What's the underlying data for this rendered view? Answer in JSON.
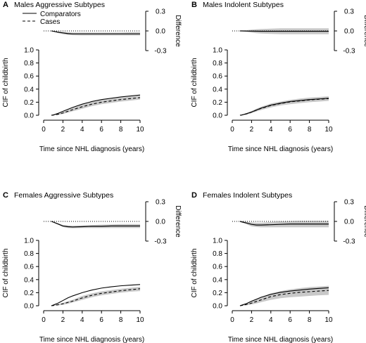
{
  "figure": {
    "legend": {
      "placement": "top-left of panel A",
      "entries": [
        {
          "label": "Comparators",
          "style": "solid"
        },
        {
          "label": "Cases",
          "style": "dashed"
        }
      ]
    },
    "colors": {
      "line": "#000000",
      "band": "#c8c8c8",
      "reference": "#000000"
    }
  },
  "chart_data": [
    {
      "type": "line",
      "panel_label": "A",
      "title": "Males Aggressive Subtypes",
      "xlabel": "Time since NHL diagnosis (years)",
      "ylabel": "CIF of childbirth",
      "diff_label": "Difference",
      "xlim": [
        0,
        10
      ],
      "ylim": [
        0,
        1.0
      ],
      "diff_ylim": [
        -0.3,
        0.3
      ],
      "x_ticks": [
        "0",
        "2",
        "4",
        "6",
        "8",
        "10"
      ],
      "y_ticks": [
        "0.0",
        "0.2",
        "0.4",
        "0.6",
        "0.8",
        "1.0"
      ],
      "diff_ticks": [
        "0.3",
        "0.0",
        "-0.3"
      ],
      "x": [
        0.8,
        1,
        1.5,
        2,
        2.5,
        3,
        4,
        5,
        6,
        7,
        8,
        9,
        10
      ],
      "series": [
        {
          "name": "Comparators",
          "values": [
            0.0,
            0.005,
            0.03,
            0.06,
            0.09,
            0.12,
            0.17,
            0.21,
            0.24,
            0.26,
            0.28,
            0.295,
            0.31
          ]
        },
        {
          "name": "Cases",
          "values": [
            0.0,
            0.003,
            0.015,
            0.035,
            0.06,
            0.085,
            0.13,
            0.17,
            0.2,
            0.22,
            0.24,
            0.255,
            0.27
          ]
        }
      ],
      "cases_band": {
        "lower": [
          0.0,
          0.0,
          0.005,
          0.02,
          0.04,
          0.06,
          0.1,
          0.14,
          0.17,
          0.19,
          0.21,
          0.225,
          0.24
        ],
        "upper": [
          0.0,
          0.008,
          0.025,
          0.05,
          0.08,
          0.11,
          0.16,
          0.2,
          0.23,
          0.25,
          0.27,
          0.285,
          0.3
        ]
      },
      "difference": {
        "values": [
          0.0,
          -0.005,
          -0.02,
          -0.03,
          -0.04,
          -0.045,
          -0.045,
          -0.045,
          -0.045,
          -0.045,
          -0.045,
          -0.045,
          -0.045
        ],
        "lower": [
          0.0,
          -0.01,
          -0.03,
          -0.05,
          -0.06,
          -0.065,
          -0.07,
          -0.07,
          -0.07,
          -0.07,
          -0.07,
          -0.07,
          -0.07
        ],
        "upper": [
          0.0,
          0.0,
          -0.01,
          -0.015,
          -0.02,
          -0.025,
          -0.025,
          -0.025,
          -0.025,
          -0.025,
          -0.025,
          -0.02,
          -0.02
        ]
      }
    },
    {
      "type": "line",
      "panel_label": "B",
      "title": "Males Indolent Subtypes",
      "xlabel": "Time since NHL diagnosis (years)",
      "ylabel": "CIF of childbirth",
      "diff_label": "Difference",
      "xlim": [
        0,
        10
      ],
      "ylim": [
        0,
        1.0
      ],
      "diff_ylim": [
        -0.3,
        0.3
      ],
      "x_ticks": [
        "0",
        "2",
        "4",
        "6",
        "8",
        "10"
      ],
      "y_ticks": [
        "0.0",
        "0.2",
        "0.4",
        "0.6",
        "0.8",
        "1.0"
      ],
      "diff_ticks": [
        "0.3",
        "0.0",
        "-0.3"
      ],
      "x": [
        0.8,
        1,
        1.5,
        2,
        2.5,
        3,
        4,
        5,
        6,
        7,
        8,
        9,
        10
      ],
      "series": [
        {
          "name": "Comparators",
          "values": [
            0.0,
            0.005,
            0.025,
            0.05,
            0.08,
            0.11,
            0.155,
            0.185,
            0.21,
            0.225,
            0.24,
            0.25,
            0.26
          ]
        },
        {
          "name": "Cases",
          "values": [
            0.0,
            0.004,
            0.022,
            0.048,
            0.078,
            0.105,
            0.15,
            0.18,
            0.205,
            0.22,
            0.235,
            0.245,
            0.255
          ]
        }
      ],
      "cases_band": {
        "lower": [
          0.0,
          0.0,
          0.012,
          0.032,
          0.058,
          0.08,
          0.12,
          0.15,
          0.17,
          0.185,
          0.2,
          0.21,
          0.22
        ],
        "upper": [
          0.0,
          0.01,
          0.035,
          0.065,
          0.1,
          0.13,
          0.18,
          0.21,
          0.235,
          0.255,
          0.27,
          0.28,
          0.29
        ]
      },
      "difference": {
        "values": [
          0.0,
          0.0,
          -0.002,
          -0.003,
          -0.004,
          -0.005,
          -0.005,
          -0.005,
          -0.005,
          -0.005,
          -0.005,
          -0.005,
          -0.005
        ],
        "lower": [
          0.0,
          -0.005,
          -0.015,
          -0.025,
          -0.035,
          -0.04,
          -0.045,
          -0.05,
          -0.05,
          -0.05,
          -0.05,
          -0.05,
          -0.05
        ],
        "upper": [
          0.0,
          0.005,
          0.012,
          0.02,
          0.025,
          0.03,
          0.035,
          0.04,
          0.04,
          0.04,
          0.04,
          0.04,
          0.04
        ]
      }
    },
    {
      "type": "line",
      "panel_label": "C",
      "title": "Females Aggressive Subtypes",
      "xlabel": "Time since NHL diagnosis (years)",
      "ylabel": "CIF of childbirth",
      "diff_label": "Difference",
      "xlim": [
        0,
        10
      ],
      "ylim": [
        0,
        1.0
      ],
      "diff_ylim": [
        -0.3,
        0.3
      ],
      "x_ticks": [
        "0",
        "2",
        "4",
        "6",
        "8",
        "10"
      ],
      "y_ticks": [
        "0.0",
        "0.2",
        "0.4",
        "0.6",
        "0.8",
        "1.0"
      ],
      "diff_ticks": [
        "0.3",
        "0.0",
        "-0.3"
      ],
      "x": [
        0.8,
        1,
        1.5,
        2,
        2.5,
        3,
        4,
        5,
        6,
        7,
        8,
        9,
        10
      ],
      "series": [
        {
          "name": "Comparators",
          "values": [
            0.0,
            0.01,
            0.04,
            0.08,
            0.12,
            0.15,
            0.2,
            0.24,
            0.27,
            0.29,
            0.305,
            0.315,
            0.325
          ]
        },
        {
          "name": "Cases",
          "values": [
            0.0,
            0.003,
            0.015,
            0.03,
            0.05,
            0.07,
            0.12,
            0.16,
            0.19,
            0.21,
            0.23,
            0.245,
            0.26
          ]
        }
      ],
      "cases_band": {
        "lower": [
          0.0,
          0.0,
          0.005,
          0.015,
          0.03,
          0.05,
          0.09,
          0.13,
          0.16,
          0.18,
          0.2,
          0.215,
          0.225
        ],
        "upper": [
          0.0,
          0.008,
          0.025,
          0.045,
          0.07,
          0.09,
          0.15,
          0.19,
          0.22,
          0.24,
          0.26,
          0.275,
          0.29
        ]
      },
      "difference": {
        "values": [
          0.0,
          -0.01,
          -0.04,
          -0.07,
          -0.08,
          -0.085,
          -0.08,
          -0.075,
          -0.075,
          -0.07,
          -0.07,
          -0.07,
          -0.07
        ],
        "lower": [
          0.0,
          -0.015,
          -0.05,
          -0.085,
          -0.1,
          -0.105,
          -0.1,
          -0.1,
          -0.1,
          -0.1,
          -0.1,
          -0.1,
          -0.1
        ],
        "upper": [
          0.0,
          -0.005,
          -0.03,
          -0.055,
          -0.06,
          -0.065,
          -0.06,
          -0.055,
          -0.05,
          -0.045,
          -0.04,
          -0.04,
          -0.04
        ]
      }
    },
    {
      "type": "line",
      "panel_label": "D",
      "title": "Females Indolent Subtypes",
      "xlabel": "Time since NHL diagnosis (years)",
      "ylabel": "CIF of childbirth",
      "diff_label": "Difference",
      "xlim": [
        0,
        10
      ],
      "ylim": [
        0,
        1.0
      ],
      "diff_ylim": [
        -0.3,
        0.3
      ],
      "x_ticks": [
        "0",
        "2",
        "4",
        "6",
        "8",
        "10"
      ],
      "y_ticks": [
        "0.0",
        "0.2",
        "0.4",
        "0.6",
        "0.8",
        "1.0"
      ],
      "diff_ticks": [
        "0.3",
        "0.0",
        "-0.3"
      ],
      "x": [
        0.8,
        1,
        1.5,
        2,
        2.5,
        3,
        4,
        5,
        6,
        7,
        8,
        9,
        10
      ],
      "series": [
        {
          "name": "Comparators",
          "values": [
            0.0,
            0.01,
            0.035,
            0.07,
            0.1,
            0.13,
            0.175,
            0.205,
            0.225,
            0.24,
            0.255,
            0.265,
            0.275
          ]
        },
        {
          "name": "Cases",
          "values": [
            0.0,
            0.004,
            0.02,
            0.04,
            0.065,
            0.09,
            0.14,
            0.17,
            0.19,
            0.205,
            0.215,
            0.225,
            0.235
          ]
        }
      ],
      "cases_band": {
        "lower": [
          0.0,
          0.0,
          0.008,
          0.02,
          0.035,
          0.055,
          0.09,
          0.115,
          0.13,
          0.14,
          0.15,
          0.16,
          0.165
        ],
        "upper": [
          0.0,
          0.01,
          0.035,
          0.065,
          0.1,
          0.13,
          0.19,
          0.225,
          0.25,
          0.27,
          0.285,
          0.295,
          0.305
        ]
      },
      "difference": {
        "values": [
          0.0,
          -0.008,
          -0.025,
          -0.045,
          -0.055,
          -0.055,
          -0.05,
          -0.045,
          -0.04,
          -0.04,
          -0.04,
          -0.04,
          -0.04
        ],
        "lower": [
          0.0,
          -0.015,
          -0.045,
          -0.075,
          -0.085,
          -0.09,
          -0.09,
          -0.09,
          -0.09,
          -0.09,
          -0.09,
          -0.09,
          -0.09
        ],
        "upper": [
          0.0,
          0.0,
          -0.005,
          -0.015,
          -0.02,
          -0.02,
          -0.01,
          0.0,
          0.005,
          0.01,
          0.01,
          0.01,
          0.01
        ]
      }
    }
  ]
}
